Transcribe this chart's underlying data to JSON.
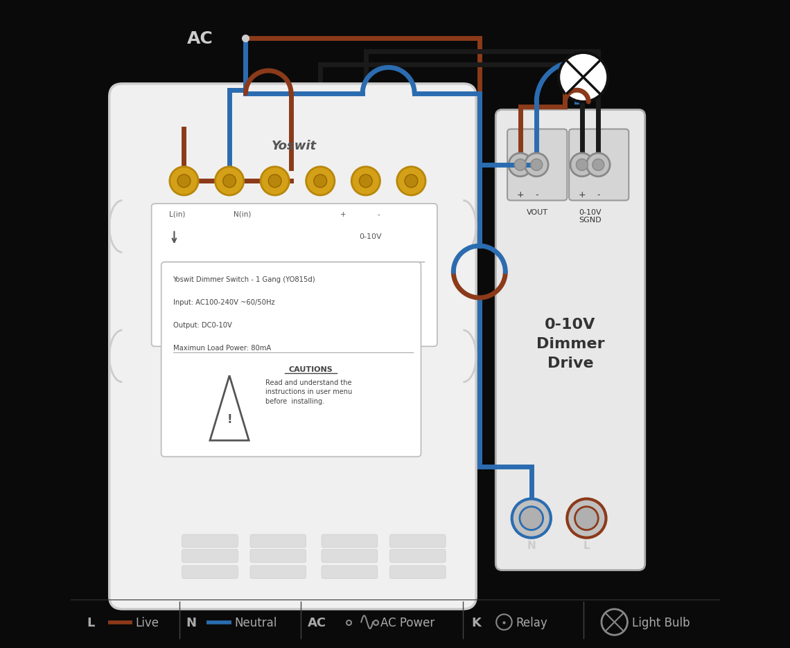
{
  "bg_color": "#0a0a0a",
  "live_color": "#8B3A1A",
  "neutral_color": "#2B6CB0",
  "wire_lw": 5,
  "switch_text_lines": [
    "Yoswit Dimmer Switch - 1 Gang (YO815d)",
    "Input: AC100-240V ~60/50Hz",
    "Output: DC0-10V",
    "Maximun Load Power: 80mA"
  ]
}
